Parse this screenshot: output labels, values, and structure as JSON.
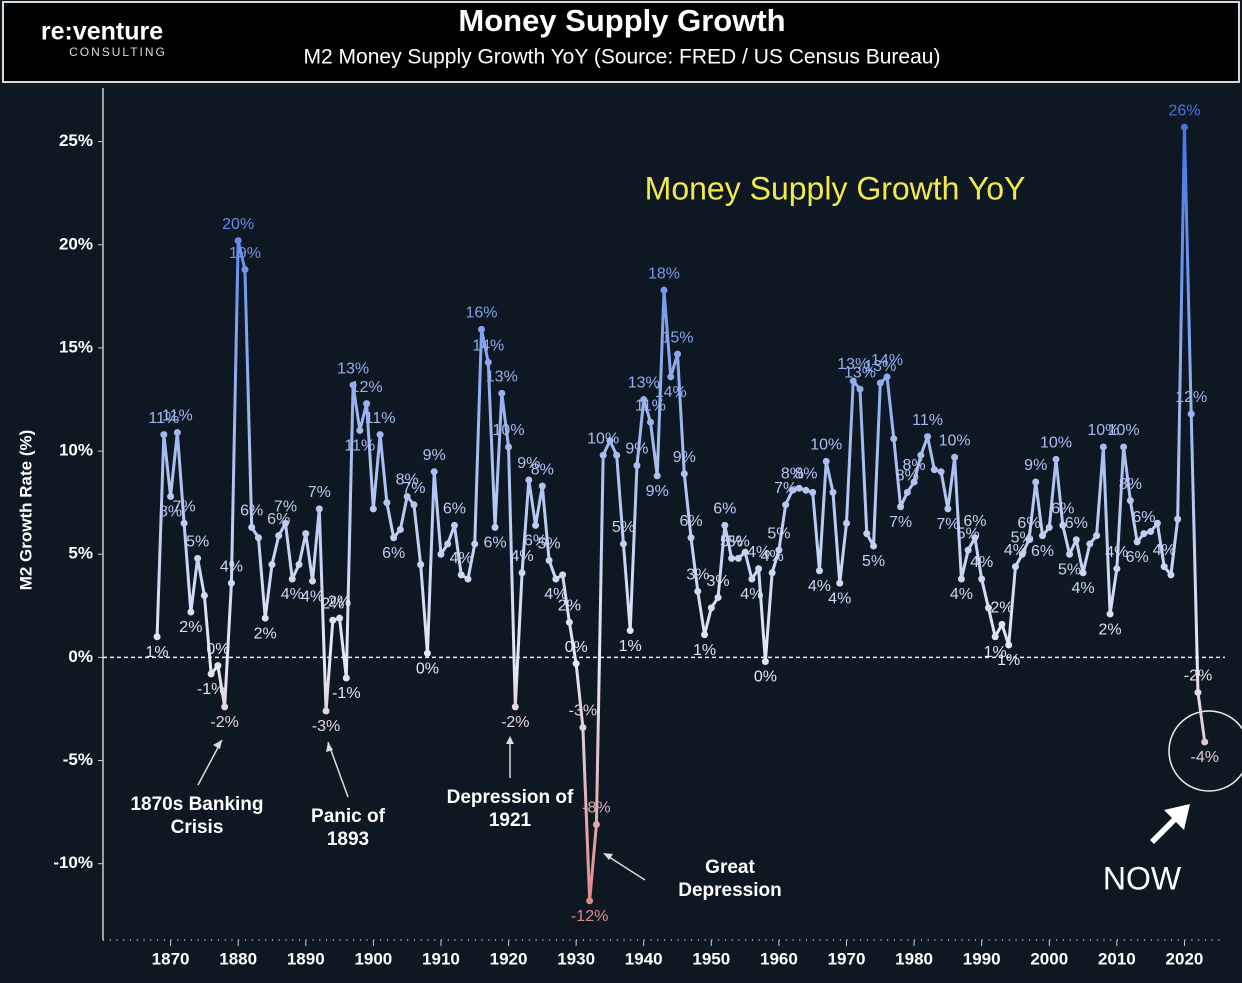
{
  "logo": {
    "name": "re:venture",
    "sub": "CONSULTING"
  },
  "chart_data": {
    "type": "line",
    "title": "Money Supply Growth",
    "subtitle": "M2 Money Supply Growth YoY  (Source: FRED / US Census Bureau)",
    "inner_title": "Money Supply Growth YoY",
    "y_label": "M2 Growth Rate (%)",
    "x": [
      1868,
      1869,
      1870,
      1871,
      1872,
      1873,
      1874,
      1875,
      1876,
      1877,
      1878,
      1879,
      1880,
      1881,
      1882,
      1883,
      1884,
      1885,
      1886,
      1887,
      1888,
      1889,
      1890,
      1891,
      1892,
      1893,
      1894,
      1895,
      1896,
      1897,
      1898,
      1899,
      1900,
      1901,
      1902,
      1903,
      1904,
      1905,
      1906,
      1907,
      1908,
      1909,
      1910,
      1911,
      1912,
      1913,
      1914,
      1915,
      1916,
      1917,
      1918,
      1919,
      1920,
      1921,
      1922,
      1923,
      1924,
      1925,
      1926,
      1927,
      1928,
      1929,
      1930,
      1931,
      1932,
      1933,
      1934,
      1935,
      1936,
      1937,
      1938,
      1939,
      1940,
      1941,
      1942,
      1943,
      1944,
      1945,
      1946,
      1947,
      1948,
      1949,
      1950,
      1951,
      1952,
      1953,
      1954,
      1955,
      1956,
      1957,
      1958,
      1959,
      1960,
      1961,
      1962,
      1963,
      1964,
      1965,
      1966,
      1967,
      1968,
      1969,
      1970,
      1971,
      1972,
      1973,
      1974,
      1975,
      1976,
      1977,
      1978,
      1979,
      1980,
      1981,
      1982,
      1983,
      1984,
      1985,
      1986,
      1987,
      1988,
      1989,
      1990,
      1991,
      1992,
      1993,
      1994,
      1995,
      1996,
      1997,
      1998,
      1999,
      2000,
      2001,
      2002,
      2003,
      2004,
      2005,
      2006,
      2007,
      2008,
      2009,
      2010,
      2011,
      2012,
      2013,
      2014,
      2015,
      2016,
      2017,
      2018,
      2019,
      2020,
      2021,
      2022,
      2023
    ],
    "values": [
      1.0,
      10.8,
      7.8,
      10.9,
      6.5,
      2.2,
      4.8,
      3.0,
      -0.8,
      -0.4,
      -2.4,
      3.6,
      20.2,
      18.8,
      6.3,
      5.8,
      1.9,
      4.5,
      5.9,
      6.5,
      3.8,
      4.5,
      6.0,
      3.7,
      7.2,
      -2.6,
      1.8,
      1.9,
      -1.0,
      13.2,
      11.0,
      12.3,
      7.2,
      10.8,
      7.5,
      5.8,
      6.2,
      7.8,
      7.4,
      4.5,
      0.2,
      9.0,
      5.0,
      5.5,
      6.4,
      4.0,
      3.8,
      5.5,
      15.9,
      14.3,
      6.3,
      12.8,
      10.2,
      -2.4,
      4.1,
      8.6,
      6.4,
      8.3,
      4.7,
      3.8,
      4.0,
      1.7,
      -0.3,
      -3.4,
      -11.8,
      -8.1,
      9.8,
      10.5,
      9.8,
      5.5,
      1.3,
      9.3,
      12.5,
      11.4,
      8.8,
      17.8,
      13.6,
      14.7,
      8.9,
      5.8,
      3.2,
      1.1,
      2.4,
      2.9,
      6.4,
      4.8,
      4.8,
      5.1,
      3.8,
      4.3,
      -0.2,
      4.1,
      5.2,
      7.4,
      8.1,
      8.2,
      8.1,
      8.0,
      4.2,
      9.5,
      8.0,
      3.6,
      6.5,
      13.4,
      13.0,
      6.0,
      5.4,
      13.3,
      13.6,
      10.6,
      7.3,
      8.0,
      8.5,
      9.8,
      10.7,
      9.1,
      9.0,
      7.2,
      9.7,
      3.8,
      5.2,
      5.8,
      3.8,
      2.4,
      1.0,
      1.6,
      0.6,
      4.4,
      5.0,
      5.7,
      8.5,
      5.9,
      6.3,
      9.6,
      6.4,
      5.0,
      5.7,
      4.1,
      5.5,
      5.9,
      10.2,
      2.1,
      4.3,
      10.2,
      7.6,
      5.6,
      6.0,
      6.1,
      6.5,
      4.4,
      4.0,
      6.7,
      25.7,
      11.8,
      -1.7,
      -4.1
    ],
    "value_labels": [
      "1%",
      "11%",
      "8%",
      "11%",
      "7%",
      "2%",
      "5%",
      null,
      "-1%",
      "0%",
      "-2%",
      "4%",
      "20%",
      "19%",
      "6%",
      null,
      "2%",
      null,
      "6%",
      "7%",
      "4%",
      null,
      null,
      "4%",
      "7%",
      "-3%",
      "2%",
      "2%",
      "-1%",
      "13%",
      "11%",
      "12%",
      null,
      "11%",
      null,
      "6%",
      null,
      "8%",
      "7%",
      null,
      "0%",
      "9%",
      null,
      null,
      "6%",
      "4%",
      null,
      null,
      "16%",
      "14%",
      "6%",
      "13%",
      "10%",
      "-2%",
      "4%",
      "9%",
      "6%",
      "8%",
      "5%",
      "4%",
      null,
      "2%",
      "0%",
      "-3%",
      "-12%",
      "-8%",
      "10%",
      null,
      null,
      "5%",
      "1%",
      "9%",
      "13%",
      "11%",
      "9%",
      "18%",
      "14%",
      "15%",
      "9%",
      "6%",
      "3%",
      "1%",
      null,
      "3%",
      "6%",
      "5%",
      "5%",
      null,
      "4%",
      "4%",
      "0%",
      "4%",
      "5%",
      "7%",
      "8%",
      null,
      "8%",
      null,
      "4%",
      "10%",
      null,
      "4%",
      null,
      "13%",
      "13%",
      null,
      "5%",
      "13%",
      "14%",
      null,
      "7%",
      "8%",
      "8%",
      null,
      "11%",
      null,
      null,
      "7%",
      "10%",
      "4%",
      "5%",
      "6%",
      "4%",
      null,
      "1%",
      "2%",
      "1%",
      "4%",
      "5%",
      "6%",
      "9%",
      "6%",
      null,
      "10%",
      "6%",
      "5%",
      "6%",
      "4%",
      null,
      null,
      "10%",
      "2%",
      "4%",
      "10%",
      "8%",
      "6%",
      "6%",
      null,
      null,
      "4%",
      null,
      null,
      "26%",
      "12%",
      "-2%",
      "-4%"
    ],
    "colors": {
      "high": "#3a6ce8",
      "mid": "#e4eaf6",
      "low": "#e27a78"
    },
    "xlim": [
      1860,
      2026
    ],
    "ylim": [
      -13.7,
      27.6
    ],
    "xticks": [
      1870,
      1880,
      1890,
      1900,
      1910,
      1920,
      1930,
      1940,
      1950,
      1960,
      1970,
      1980,
      1990,
      2000,
      2010,
      2020
    ],
    "yticks": [
      {
        "value": -10,
        "label": "-10%"
      },
      {
        "value": -5,
        "label": "-5%"
      },
      {
        "value": 0,
        "label": "0%"
      },
      {
        "value": 5,
        "label": "5%"
      },
      {
        "value": 10,
        "label": "10%"
      },
      {
        "value": 15,
        "label": "15%"
      },
      {
        "value": 20,
        "label": "20%"
      },
      {
        "value": 25,
        "label": "25%"
      }
    ],
    "reference_line": 0,
    "annotations": [
      {
        "lines": [
          "1870s Banking",
          "Crisis"
        ]
      },
      {
        "lines": [
          "Panic of",
          "1893"
        ]
      },
      {
        "lines": [
          "Depression of",
          "1921"
        ]
      },
      {
        "lines": [
          "Great",
          "Depression"
        ]
      },
      {
        "lines": [
          "NOW"
        ]
      }
    ]
  }
}
